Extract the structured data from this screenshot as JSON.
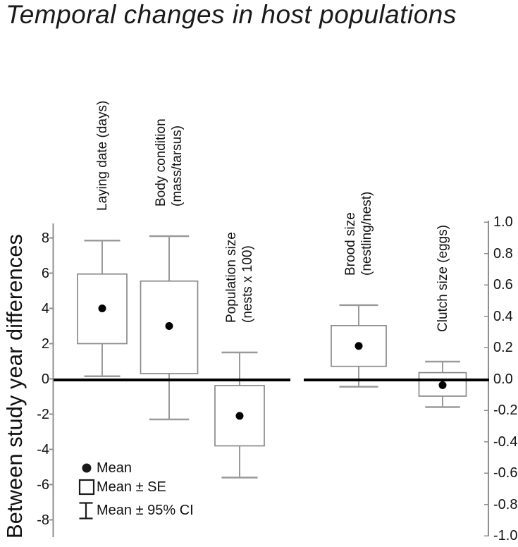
{
  "title": "Temporal changes in host populations",
  "colors": {
    "background": "#ffffff",
    "box_stroke": "#8a8a8a",
    "whisker": "#8f8f8f",
    "whisker_cap": "#9a9a9a",
    "axis": "#8f8f8f",
    "zero_line": "#000000",
    "mean_dot": "#000000",
    "text": "#1a1a1a"
  },
  "chart_data": {
    "type": "boxplot",
    "title": "Temporal changes in host populations",
    "ylabel_left": "Between study year differences",
    "grid": false,
    "y_axis_left": {
      "min": -9.0,
      "max": 8.8,
      "ticks": [
        8,
        6,
        4,
        2,
        0,
        -2,
        -4,
        -6,
        -8
      ]
    },
    "y_axis_right": {
      "min": -1.0,
      "max": 1.0,
      "ticks": [
        "1.0",
        "0.8",
        "0.6",
        "0.4",
        "0.2",
        "0.0",
        "-0.2",
        "-0.4",
        "-0.6",
        "-0.8",
        "-1.0"
      ]
    },
    "zero_reference_line": 0,
    "categories": [
      "Laying date (days)",
      "Body condition (mass/tarsus)",
      "Population size (nests x 100)",
      "Brood size (nestling/nest)",
      "Clutch size (eggs)"
    ],
    "series": [
      {
        "name": "Laying date (days)",
        "label_lines": [
          "Laying date (days)"
        ],
        "axis": "left",
        "mean": 4.0,
        "se_low": 2.0,
        "se_high": 5.95,
        "ci_low": 0.15,
        "ci_high": 7.85
      },
      {
        "name": "Body condition (mass/tarsus)",
        "label_lines": [
          "Body condition",
          "(mass/tarsus)"
        ],
        "axis": "left",
        "mean": 3.0,
        "se_low": 0.3,
        "se_high": 5.55,
        "ci_low": -2.3,
        "ci_high": 8.1
      },
      {
        "name": "Population size (nests x 100)",
        "label_lines": [
          "Population size",
          "(nests x 100)"
        ],
        "axis": "left",
        "mean": -2.1,
        "se_low": -3.8,
        "se_high": -0.38,
        "ci_low": -5.6,
        "ci_high": 1.5
      },
      {
        "name": "Brood size (nestling/nest)",
        "label_lines": [
          "Brood size",
          "(nestling/nest)"
        ],
        "axis": "right",
        "mean": 0.21,
        "se_low": 0.08,
        "se_high": 0.34,
        "ci_low": -0.05,
        "ci_high": 0.47
      },
      {
        "name": "Clutch size (eggs)",
        "label_lines": [
          "Clutch size (eggs)"
        ],
        "axis": "right",
        "mean": -0.04,
        "se_low": -0.11,
        "se_high": 0.04,
        "ci_low": -0.18,
        "ci_high": 0.11
      }
    ],
    "legend": {
      "position": "bottom-left",
      "items": [
        {
          "symbol": "mean-dot",
          "label": "Mean"
        },
        {
          "symbol": "se-box",
          "label": "Mean ± SE"
        },
        {
          "symbol": "ci-bar",
          "label": "Mean ± 95% CI"
        }
      ]
    }
  }
}
